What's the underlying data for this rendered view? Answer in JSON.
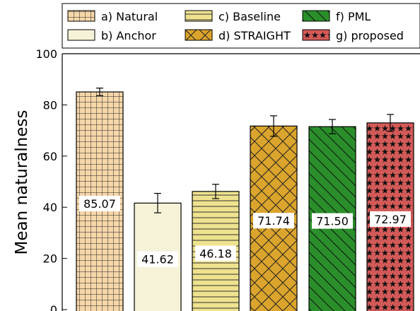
{
  "chart_data": {
    "type": "bar",
    "title": "",
    "xlabel": "",
    "ylabel": "Mean naturalness",
    "ylim": [
      0,
      100
    ],
    "yticks": [
      0,
      20,
      40,
      60,
      80,
      100
    ],
    "grid": false,
    "legend_position": "top",
    "categories": [
      "a) Natural",
      "b) Anchor",
      "c) Baseline",
      "d) STRAIGHT",
      "f) PML",
      "g) proposed"
    ],
    "values": [
      85.07,
      41.62,
      46.18,
      71.74,
      71.5,
      72.97
    ],
    "value_labels": [
      "85.07",
      "41.62",
      "46.18",
      "71.74",
      "71.50",
      "72.97"
    ],
    "error": [
      1.5,
      3.8,
      2.8,
      4.0,
      2.8,
      3.3
    ],
    "colors": [
      "#f6d7a9",
      "#f5f2d8",
      "#eee28e",
      "#dba42c",
      "#2a8f2a",
      "#d35a58"
    ],
    "hatches": [
      "grid",
      "none",
      "horizontal",
      "crosshatch",
      "diagonal",
      "stars"
    ]
  }
}
